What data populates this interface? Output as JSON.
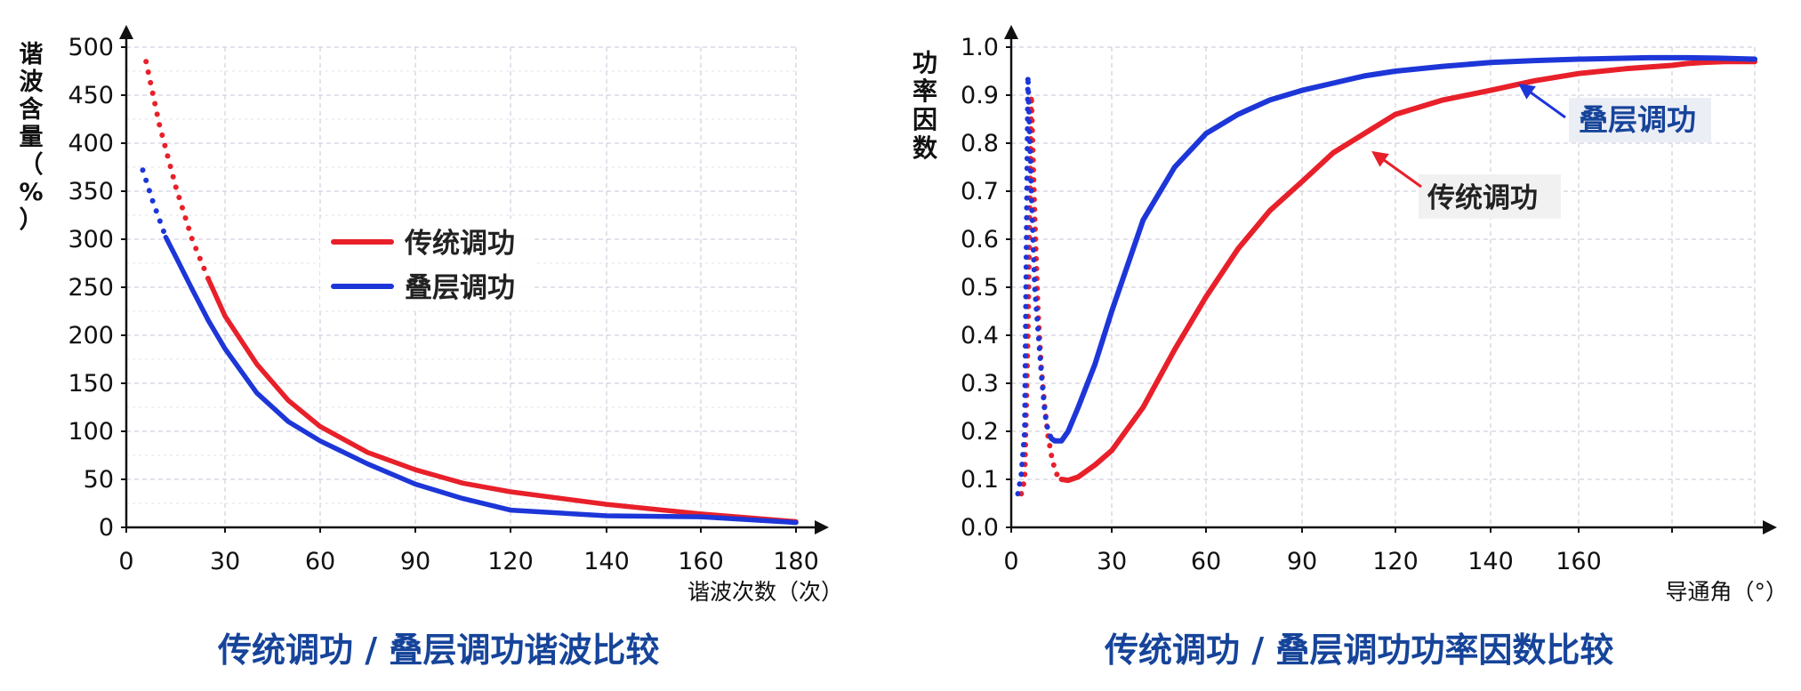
{
  "chart_data": [
    {
      "type": "line",
      "title": "传统调功 / 叠层调功谐波比较",
      "xlabel": "谐波次数（次）",
      "ylabel": "谐波含量（%）",
      "x_ticks": [
        0,
        30,
        60,
        90,
        120,
        140,
        160,
        180
      ],
      "y_ticks": [
        0,
        50,
        100,
        150,
        200,
        250,
        300,
        350,
        400,
        450,
        500
      ],
      "ylim": [
        0,
        500
      ],
      "grid": true,
      "legend_position": "center",
      "series": [
        {
          "name": "传统调功",
          "color": "#e8202a",
          "x": [
            6,
            10,
            15,
            20,
            25,
            30,
            40,
            50,
            60,
            75,
            90,
            105,
            120,
            140,
            160,
            180
          ],
          "y": [
            485,
            420,
            355,
            300,
            258,
            220,
            170,
            132,
            105,
            78,
            60,
            46,
            37,
            24,
            14,
            6
          ]
        },
        {
          "name": "叠层调功",
          "color": "#1d36d8",
          "x": [
            5,
            8,
            12,
            15,
            20,
            25,
            30,
            40,
            50,
            60,
            75,
            90,
            105,
            120,
            140,
            160,
            180
          ],
          "y": [
            372,
            340,
            302,
            282,
            248,
            215,
            186,
            140,
            110,
            90,
            66,
            45,
            30,
            18,
            12,
            11,
            5
          ]
        }
      ]
    },
    {
      "type": "line",
      "title": "传统调功 / 叠层调功功率因数比较",
      "xlabel": "导通角（°）",
      "ylabel": "功率因数",
      "x_ticks": [
        0,
        30,
        60,
        90,
        120,
        140,
        160
      ],
      "y_ticks": [
        "0.0",
        "0.1",
        "0.2",
        "0.3",
        "0.4",
        "0.5",
        "0.6",
        "0.7",
        "0.8",
        "0.9",
        "1.0"
      ],
      "ylim": [
        0,
        1
      ],
      "grid": true,
      "annotations": [
        "叠层调功",
        "传统调功"
      ],
      "series": [
        {
          "name": "传统调功",
          "color": "#e8202a",
          "x": [
            3,
            4,
            5,
            6,
            7,
            8,
            9,
            10,
            11,
            12,
            13,
            14,
            15,
            17,
            20,
            25,
            30,
            40,
            50,
            60,
            70,
            80,
            90,
            100,
            110,
            120,
            130,
            140,
            150,
            160,
            170,
            180,
            190,
            200,
            215,
            235
          ],
          "y": [
            0.07,
            0.1,
            0.4,
            0.9,
            0.65,
            0.45,
            0.33,
            0.25,
            0.19,
            0.15,
            0.12,
            0.105,
            0.1,
            0.098,
            0.105,
            0.13,
            0.16,
            0.25,
            0.37,
            0.48,
            0.58,
            0.66,
            0.72,
            0.78,
            0.82,
            0.86,
            0.89,
            0.91,
            0.93,
            0.945,
            0.955,
            0.962,
            0.966,
            0.968,
            0.97,
            0.97
          ]
        },
        {
          "name": "叠层调功",
          "color": "#1d36d8",
          "x": [
            2,
            3,
            4,
            5,
            6,
            7,
            9,
            10,
            11,
            12,
            13,
            15,
            17,
            20,
            25,
            30,
            40,
            50,
            60,
            70,
            80,
            90,
            100,
            110,
            120,
            130,
            140,
            150,
            160,
            175,
            190,
            210,
            235
          ],
          "y": [
            0.07,
            0.11,
            0.2,
            0.94,
            0.7,
            0.5,
            0.32,
            0.24,
            0.2,
            0.185,
            0.18,
            0.18,
            0.2,
            0.25,
            0.34,
            0.45,
            0.64,
            0.75,
            0.82,
            0.86,
            0.89,
            0.91,
            0.925,
            0.94,
            0.95,
            0.96,
            0.968,
            0.972,
            0.975,
            0.978,
            0.978,
            0.977,
            0.975
          ]
        }
      ]
    }
  ]
}
